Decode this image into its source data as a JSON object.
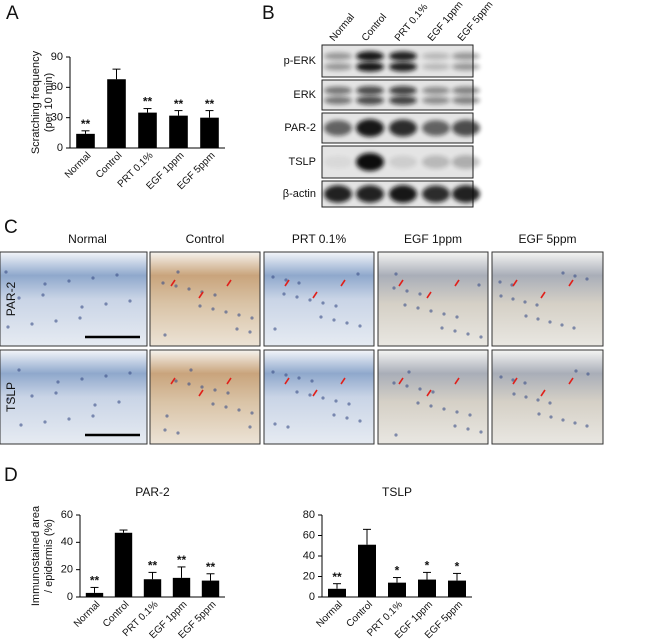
{
  "panels": [
    "A",
    "B",
    "C",
    "D"
  ],
  "blot": {
    "columns": [
      "Normal",
      "Control",
      "PRT 0.1%",
      "EGF 1ppm",
      "EGF 5ppm"
    ],
    "rows": [
      "p-ERK",
      "ERK",
      "PAR-2",
      "TSLP",
      "β-actin"
    ]
  },
  "histology": {
    "columns": [
      "Normal",
      "Control",
      "PRT 0.1%",
      "EGF 1ppm",
      "EGF 5ppm"
    ],
    "rows": [
      "PAR-2",
      "TSLP"
    ]
  },
  "chart_data": [
    {
      "type": "bar",
      "ylabel": [
        "Scratching frequency",
        "(per 10 min)"
      ],
      "categories": [
        "Normal",
        "Control",
        "PRT 0.1%",
        "EGF 1ppm",
        "EGF 5ppm"
      ],
      "values": [
        14,
        68,
        35,
        32,
        30
      ],
      "errors": [
        3,
        10,
        4,
        5,
        7
      ],
      "annotations": [
        "**",
        null,
        "**",
        "**",
        "**"
      ],
      "ylim": [
        0,
        90
      ],
      "yticks": [
        0,
        30,
        60,
        90
      ],
      "color": "#000000"
    },
    {
      "type": "bar",
      "title": "PAR-2",
      "ylabel": [
        "Immunostained area",
        "/ epidermis (%)"
      ],
      "categories": [
        "Normal",
        "Control",
        "PRT 0.1%",
        "EGF 1ppm",
        "EGF 5ppm"
      ],
      "values": [
        3,
        47,
        13,
        14,
        12
      ],
      "errors": [
        4,
        2,
        5,
        8,
        5
      ],
      "annotations": [
        "**",
        null,
        "**",
        "**",
        "**"
      ],
      "ylim": [
        0,
        60
      ],
      "yticks": [
        0,
        20,
        40,
        60
      ],
      "color": "#000000"
    },
    {
      "type": "bar",
      "title": "TSLP",
      "categories": [
        "Normal",
        "Control",
        "PRT 0.1%",
        "EGF 1ppm",
        "EGF 5ppm"
      ],
      "values": [
        8,
        51,
        14,
        17,
        16
      ],
      "errors": [
        5,
        15,
        5,
        7,
        7
      ],
      "annotations": [
        "**",
        null,
        "*",
        "*",
        "*"
      ],
      "ylim": [
        0,
        80
      ],
      "yticks": [
        0,
        20,
        40,
        60,
        80
      ],
      "color": "#000000"
    }
  ]
}
